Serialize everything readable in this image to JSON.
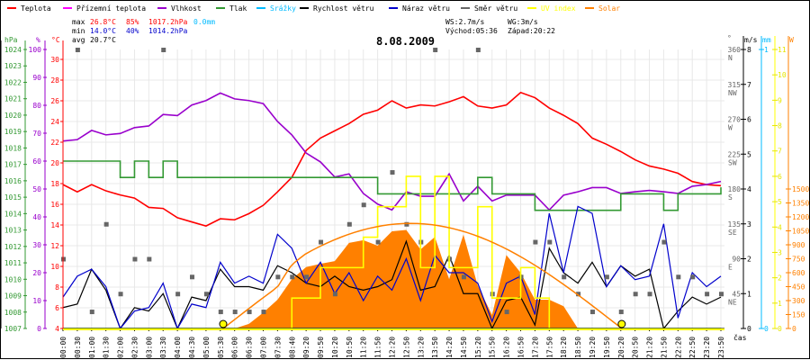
{
  "chart_data": {
    "type": "line",
    "title": "8.08.2009",
    "xlabel": "čas",
    "categories": [
      "00:00",
      "00:30",
      "01:00",
      "01:30",
      "02:00",
      "02:30",
      "03:00",
      "03:30",
      "04:00",
      "04:30",
      "05:00",
      "05:30",
      "06:00",
      "06:30",
      "07:00",
      "07:30",
      "08:40",
      "09:20",
      "09:50",
      "10:20",
      "10:50",
      "11:20",
      "11:50",
      "12:20",
      "12:50",
      "13:20",
      "13:50",
      "14:20",
      "14:50",
      "15:20",
      "15:50",
      "16:20",
      "16:50",
      "17:20",
      "17:50",
      "18:20",
      "18:50",
      "19:20",
      "19:50",
      "20:20",
      "20:50",
      "21:20",
      "21:50",
      "22:20",
      "22:50",
      "23:20",
      "23:50"
    ],
    "grid": true,
    "legend": {
      "placement": "top",
      "items": [
        {
          "label": "Teplota",
          "color": "#ff0000"
        },
        {
          "label": "Přízemní teplota",
          "color": "#ff00ff"
        },
        {
          "label": "Vlhkost",
          "color": "#9900cc"
        },
        {
          "label": "Tlak",
          "color": "#339933"
        },
        {
          "label": "Srážky",
          "color": "#00bbff"
        },
        {
          "label": "Rychlost větru",
          "color": "#000000"
        },
        {
          "label": "Náraz větru",
          "color": "#0000cc"
        },
        {
          "label": "Směr větru",
          "color": "#666666"
        },
        {
          "label": "UV index",
          "color": "#ffff00"
        },
        {
          "label": "Solar",
          "color": "#ff8000"
        }
      ]
    },
    "axes": {
      "pressure": {
        "unit": "hPa",
        "range": [
          1007,
          1024
        ],
        "color": "#339933"
      },
      "humidity": {
        "unit": "%",
        "range": [
          0,
          100
        ],
        "color": "#9900cc"
      },
      "temperature": {
        "unit": "°C",
        "range": [
          4,
          30
        ],
        "color": "#ff0000"
      },
      "direction": {
        "unit": "°",
        "range": [
          0,
          360
        ],
        "ticks": [
          45,
          90,
          135,
          180,
          225,
          270,
          315,
          360
        ],
        "labels": [
          "NE",
          "E",
          "SE",
          "S",
          "SW",
          "W",
          "NW",
          "N"
        ],
        "color": "#666666"
      },
      "wind": {
        "unit": "m/s",
        "range": [
          0,
          8
        ],
        "color": "#000000"
      },
      "rain": {
        "unit": "mm",
        "range": [
          0,
          1
        ],
        "color": "#00bbff"
      },
      "uv": {
        "unit": "",
        "range": [
          0,
          11
        ],
        "color": "#ffff00"
      },
      "solar": {
        "unit": "W",
        "range": [
          0,
          1500
        ],
        "ticks_step": 150,
        "color": "#ff8000"
      }
    },
    "series": [
      {
        "name": "Teplota",
        "axis": "temperature",
        "values": [
          17.9,
          17.2,
          17.9,
          17.3,
          16.9,
          16.6,
          15.7,
          15.6,
          14.7,
          14.3,
          13.9,
          14.6,
          14.5,
          15.1,
          15.9,
          17.2,
          18.6,
          21.2,
          22.4,
          23.1,
          23.8,
          24.7,
          25.1,
          26.0,
          25.3,
          25.6,
          25.5,
          25.9,
          26.4,
          25.5,
          25.3,
          25.6,
          26.8,
          26.3,
          25.3,
          24.6,
          23.8,
          22.4,
          21.8,
          21.1,
          20.3,
          19.7,
          19.4,
          19.0,
          18.2,
          17.9,
          17.8
        ]
      },
      {
        "name": "Vlhkost",
        "axis": "humidity",
        "values": [
          67.2,
          67.7,
          71,
          69.4,
          69.9,
          72,
          72.6,
          76.7,
          76.3,
          80.1,
          81.7,
          84.4,
          82.3,
          81.7,
          80.6,
          74.2,
          69.4,
          62.9,
          59.7,
          54.3,
          55.4,
          48.4,
          44.6,
          42.5,
          49,
          47.4,
          47.4,
          55.4,
          45.7,
          51,
          45.7,
          47.8,
          47.8,
          47.8,
          42.5,
          47.8,
          49,
          50.5,
          50.5,
          48.4,
          49,
          49.5,
          49,
          48.4,
          51,
          51.6,
          52.7
        ]
      },
      {
        "name": "Tlak",
        "axis": "pressure",
        "step": true,
        "values": [
          1017.2,
          1017.2,
          1017.2,
          1017.2,
          1016.2,
          1017.2,
          1016.2,
          1017.2,
          1016.2,
          1016.2,
          1016.2,
          1016.2,
          1016.2,
          1016.2,
          1016.2,
          1016.2,
          1016.2,
          1016.2,
          1016.2,
          1016.2,
          1016.2,
          1016.2,
          1015.2,
          1015.2,
          1015.2,
          1015.2,
          1015.2,
          1015.2,
          1015.2,
          1016.2,
          1015.2,
          1015.2,
          1015.2,
          1014.2,
          1014.2,
          1014.2,
          1014.2,
          1014.2,
          1014.2,
          1015.2,
          1015.2,
          1015.2,
          1014.2,
          1015.2,
          1015.2,
          1015.2,
          1015.6
        ]
      },
      {
        "name": "Srážky",
        "axis": "rain",
        "values": [
          0,
          0,
          0,
          0,
          0,
          0,
          0,
          0,
          0,
          0,
          0,
          0,
          0,
          0,
          0,
          0,
          0,
          0,
          0,
          0,
          0,
          0,
          0,
          0,
          0,
          0,
          0,
          0,
          0,
          0,
          0,
          0,
          0,
          0,
          0,
          0,
          0,
          0,
          0,
          0,
          0,
          0,
          0,
          0,
          0,
          0,
          0
        ]
      },
      {
        "name": "Rychlost větru",
        "axis": "wind",
        "values": [
          0.6,
          0.7,
          1.7,
          1.1,
          0,
          0.6,
          0.5,
          1.0,
          0,
          0.9,
          0.8,
          1.7,
          1.2,
          1.2,
          1.1,
          1.8,
          1.6,
          1.3,
          1.2,
          1.5,
          1.2,
          1.1,
          1.2,
          1.4,
          2.5,
          1.1,
          1.2,
          2.1,
          1.0,
          1.0,
          0,
          0.8,
          0.9,
          0.1,
          2.3,
          1.6,
          1.3,
          1.9,
          1.2,
          1.8,
          1.5,
          1.7,
          0,
          0.5,
          0.9,
          0.7,
          0.9
        ]
      },
      {
        "name": "Náraz větru",
        "axis": "wind",
        "values": [
          0.9,
          1.5,
          1.7,
          1.2,
          0,
          0.5,
          0.6,
          1.3,
          0,
          0.7,
          0.6,
          1.9,
          1.3,
          1.5,
          1.3,
          2.7,
          2.3,
          1.3,
          1.9,
          1.0,
          1.6,
          0.8,
          1.5,
          1.1,
          2.0,
          0.8,
          2.1,
          1.6,
          1.6,
          1.3,
          0.2,
          1.3,
          1.5,
          0.4,
          3.3,
          1.6,
          3.5,
          3.3,
          1.2,
          1.8,
          1.4,
          1.5,
          3.0,
          0.3,
          1.6,
          1.2,
          1.5
        ]
      },
      {
        "name": "Směr větru",
        "axis": "direction",
        "type": "scatter",
        "values": [
          90,
          360,
          22,
          135,
          45,
          90,
          90,
          360,
          45,
          67,
          45,
          22,
          22,
          22,
          22,
          67,
          67,
          67,
          112,
          45,
          135,
          160,
          112,
          202,
          135,
          112,
          360,
          90,
          67,
          360,
          45,
          22,
          67,
          112,
          112,
          67,
          45,
          22,
          67,
          22,
          45,
          45,
          112,
          67,
          67,
          45,
          45
        ]
      },
      {
        "name": "UV index",
        "axis": "uv",
        "step": true,
        "values": [
          0,
          0,
          0,
          0,
          0,
          0,
          0,
          0,
          0,
          0,
          0,
          0,
          0,
          0,
          0,
          0,
          1.2,
          1.2,
          2.4,
          2.4,
          2.4,
          3.6,
          4.8,
          4.8,
          6.0,
          2.4,
          6.0,
          2.4,
          2.4,
          4.8,
          1.2,
          1.2,
          2.4,
          1.2,
          0,
          0,
          0,
          0,
          0,
          0,
          0,
          0,
          0,
          0,
          0,
          0,
          0
        ]
      },
      {
        "name": "Solar",
        "axis": "solar",
        "type": "area",
        "values": [
          0,
          0,
          0,
          0,
          0,
          0,
          0,
          0,
          0,
          0,
          0,
          0,
          0,
          50,
          170,
          310,
          530,
          660,
          695,
          725,
          920,
          950,
          890,
          1045,
          1060,
          850,
          985,
          530,
          1010,
          460,
          145,
          790,
          600,
          310,
          310,
          240,
          0,
          0,
          0,
          0,
          0,
          0,
          0,
          0,
          0,
          0,
          0
        ]
      }
    ],
    "clear_sky_solar": {
      "sunrise": "05:36",
      "sunset": "20:22",
      "peak_W": 1130
    }
  },
  "stats": {
    "max_label": "max",
    "max_temp": "26.8°C",
    "max_hum": "85%",
    "max_press": "1017.2hPa",
    "rain": "0.0mm",
    "min_label": "min",
    "min_temp": "14.0°C",
    "min_hum": "40%",
    "min_press": "1014.2hPa",
    "avg_label": "avg",
    "avg_temp": "20.7°C",
    "ws": "WS:2.7m/s",
    "wg": "WG:3m/s",
    "sunrise": "Východ:05:36",
    "sunset": "Západ:20:22"
  },
  "axis_units": {
    "hpa": "hPa",
    "pct": "%",
    "degc": "°C",
    "deg": "°",
    "ms": "m/s",
    "mm": "mm",
    "w": "W",
    "time": "čas"
  }
}
